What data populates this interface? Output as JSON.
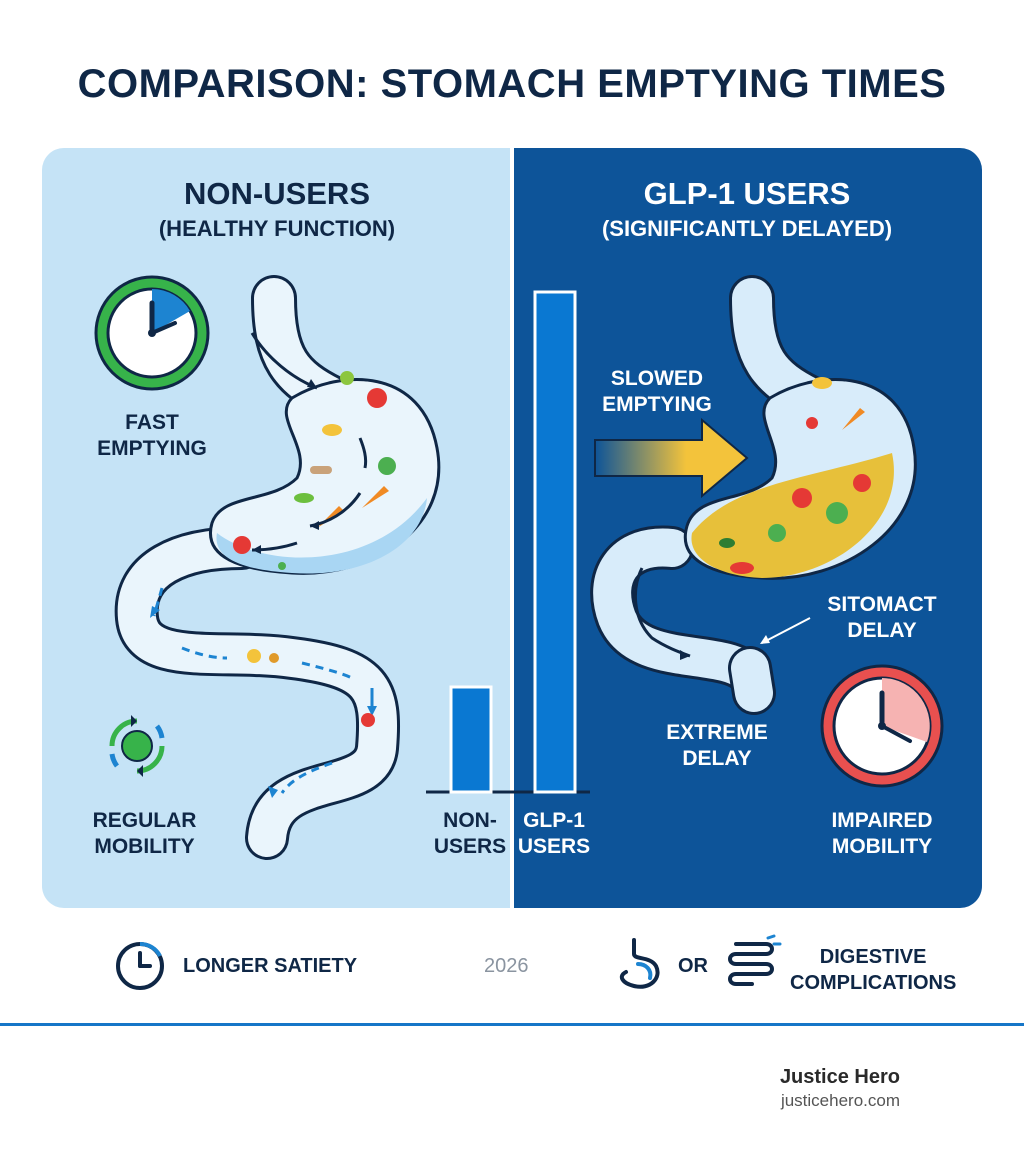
{
  "title": "COMPARISON: STOMACH EMPTYING TIMES",
  "left": {
    "heading": "NON-USERS",
    "subheading": "(HEALTHY FUNCTION)",
    "fast_emptying": [
      "FAST",
      "EMPTYING"
    ],
    "regular_mobility": [
      "REGULAR",
      "MOBILITY"
    ]
  },
  "right": {
    "heading": "GLP-1 USERS",
    "subheading": "(SIGNIFICANTLY DELAYED)",
    "slowed_emptying": [
      "SLOWED",
      "EMPTYING"
    ],
    "sitomact_delay": [
      "SITOMACT",
      "DELAY"
    ],
    "extreme_delay": [
      "EXTREME",
      "DELAY"
    ],
    "impaired_mobility": [
      "IMPAIRED",
      "MOBILITY"
    ]
  },
  "bars": {
    "non_users": [
      "NON-",
      "USERS"
    ],
    "glp1_users": [
      "GLP-1",
      "USERS"
    ],
    "non_users_level": 0.21,
    "glp1_users_level": 1.0
  },
  "footer": {
    "longer_satiety": "LONGER SATIETY",
    "year": "2026",
    "or": "OR",
    "digestive_complications": [
      "DIGESTIVE",
      "COMPLICATIONS"
    ]
  },
  "brand": {
    "name": "Justice Hero",
    "url": "justicehero.com"
  },
  "colors": {
    "navy": "#0f2746",
    "light_panel": "#c5e3f6",
    "dark_panel": "#0d5499",
    "bar_blue": "#0a78d2",
    "accent_yellow": "#f3c33b",
    "green": "#37b34a",
    "red": "#e8504f"
  }
}
